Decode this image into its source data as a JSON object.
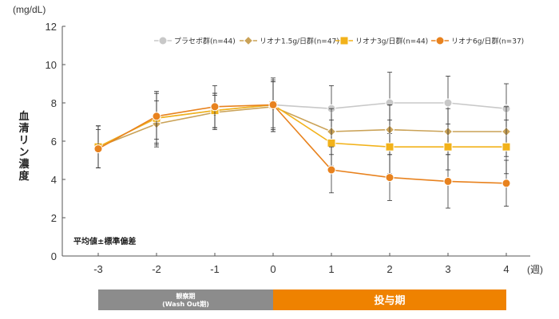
{
  "chart_data": {
    "type": "line",
    "title": "",
    "xlabel": "",
    "x_unit": "(週)",
    "ylabel": "血清リン濃度",
    "y_unit": "(mg/dL)",
    "ylim": [
      0,
      12
    ],
    "yticks": [
      0,
      2,
      4,
      6,
      8,
      10,
      12
    ],
    "x": [
      -3,
      -2,
      -1,
      0,
      1,
      2,
      3,
      4
    ],
    "grid": false,
    "legend_position": "top-right",
    "annotation": "平均値±標準偏差",
    "series": [
      {
        "name": "プラセボ群(n=44)",
        "color": "#c8c8c8",
        "marker": "circle",
        "values": [
          5.7,
          7.2,
          7.6,
          7.9,
          7.7,
          8.0,
          8.0,
          7.7
        ],
        "sd": [
          1.1,
          1.4,
          0.9,
          1.4,
          1.2,
          1.6,
          1.4,
          1.3
        ]
      },
      {
        "name": "リオナ1.5g/日群(n=47)",
        "color": "#caa257",
        "marker": "diamond",
        "values": [
          5.7,
          6.9,
          7.5,
          7.8,
          6.5,
          6.6,
          6.5,
          6.5
        ],
        "sd": [
          1.1,
          1.2,
          0.9,
          1.3,
          1.2,
          1.3,
          1.2,
          1.3
        ]
      },
      {
        "name": "リオナ3g/日群(n=44)",
        "color": "#f2b21a",
        "marker": "square",
        "values": [
          5.7,
          7.2,
          7.6,
          7.9,
          5.9,
          5.7,
          5.7,
          5.7
        ],
        "sd": [
          1.1,
          1.3,
          0.9,
          1.3,
          1.2,
          1.4,
          1.2,
          1.4
        ]
      },
      {
        "name": "リオナ6g/日群(n=37)",
        "color": "#e8821e",
        "marker": "circle",
        "values": [
          5.6,
          7.3,
          7.8,
          7.9,
          4.5,
          4.1,
          3.9,
          3.8
        ],
        "sd": [
          1.0,
          1.2,
          1.1,
          1.2,
          1.2,
          1.2,
          1.4,
          1.2
        ]
      }
    ],
    "periods": [
      {
        "label": "観察期",
        "sublabel": "(Wash Out期)",
        "x_start": -3,
        "x_end": 0,
        "color": "#8c8c8c"
      },
      {
        "label": "投与期",
        "sublabel": "",
        "x_start": 0,
        "x_end": 4,
        "color": "#ef8200"
      }
    ]
  }
}
